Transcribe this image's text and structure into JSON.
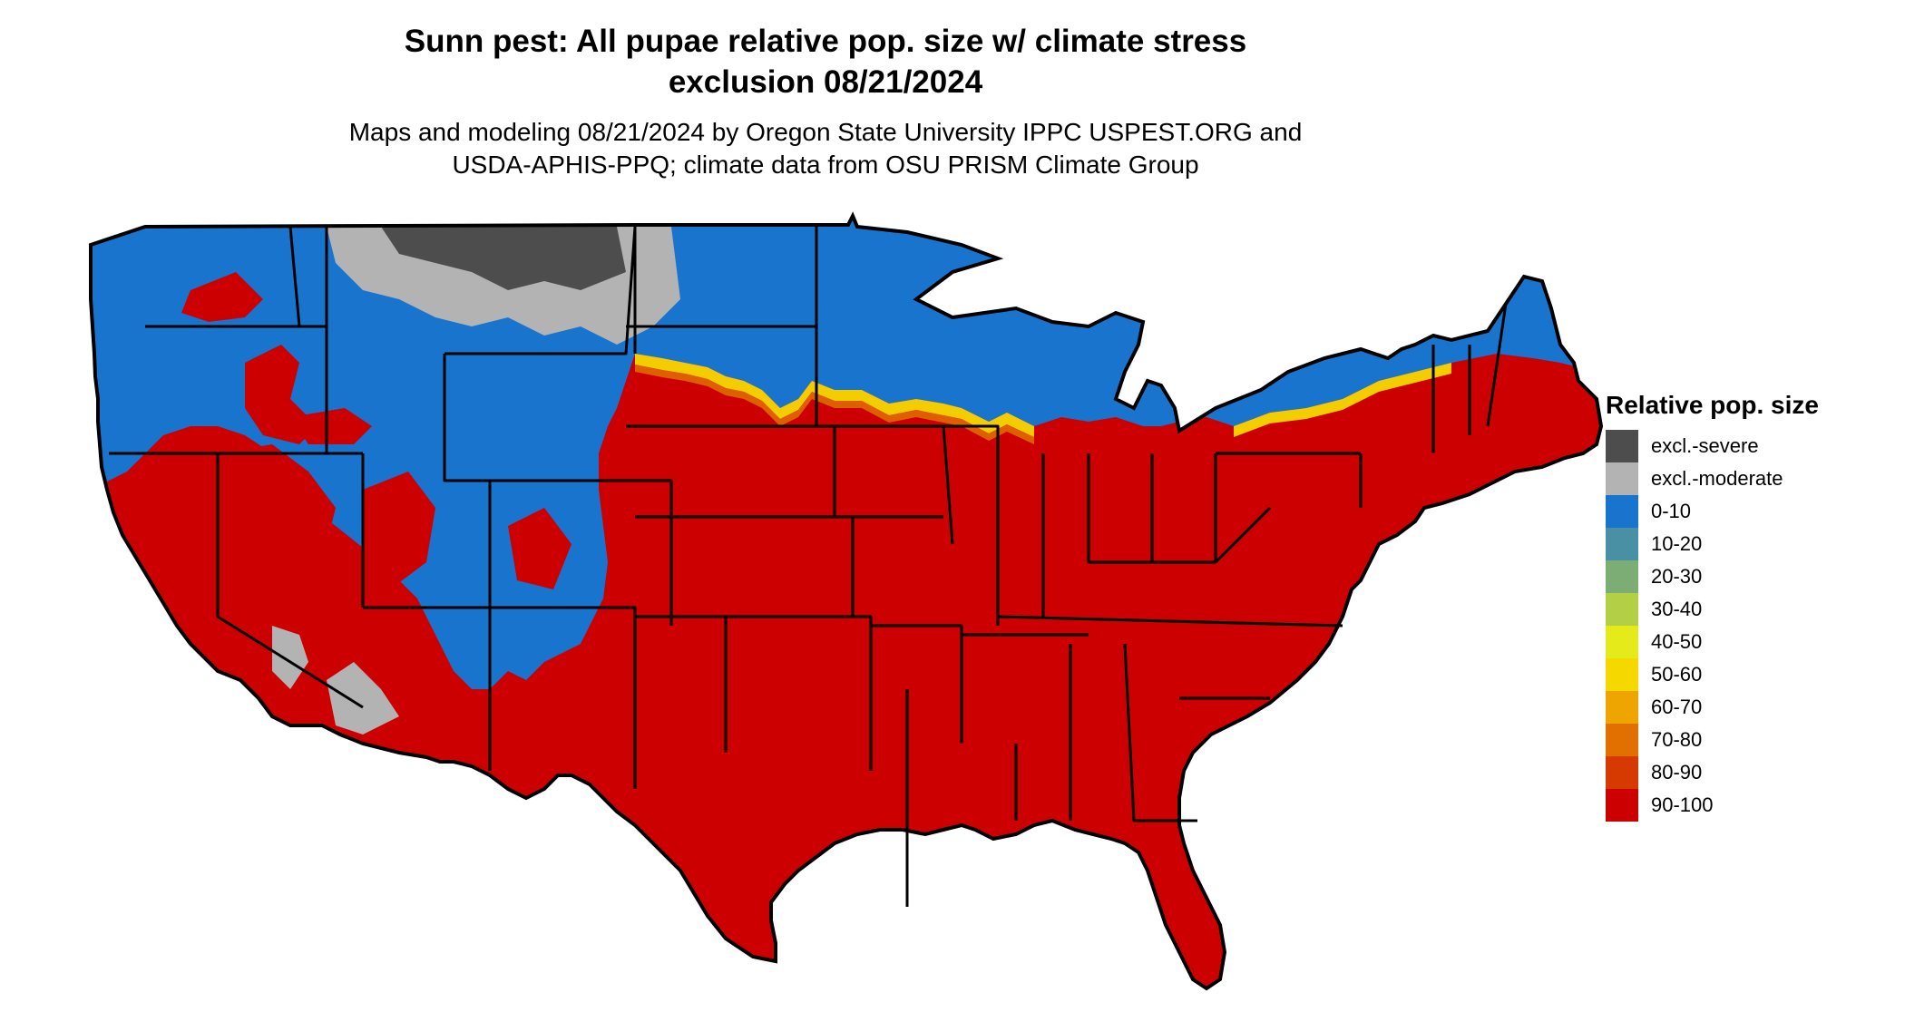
{
  "title": {
    "line1": "Sunn pest: All pupae relative pop. size w/ climate stress",
    "line2": "exclusion 08/21/2024"
  },
  "subtitle": {
    "line1": "Maps and modeling 08/21/2024 by Oregon State University IPPC USPEST.ORG and",
    "line2": "USDA-APHIS-PPQ; climate data from OSU PRISM Climate Group"
  },
  "legend": {
    "title": "Relative pop. size",
    "items": [
      {
        "label": "excl.-severe",
        "color": "#4d4d4d"
      },
      {
        "label": "excl.-moderate",
        "color": "#b3b3b3"
      },
      {
        "label": "0-10",
        "color": "#1874cd"
      },
      {
        "label": "10-20",
        "color": "#4a90a4"
      },
      {
        "label": "20-30",
        "color": "#7cad74"
      },
      {
        "label": "30-40",
        "color": "#b2cf45"
      },
      {
        "label": "40-50",
        "color": "#e5ea1a"
      },
      {
        "label": "50-60",
        "color": "#f5d800"
      },
      {
        "label": "60-70",
        "color": "#efa500"
      },
      {
        "label": "70-80",
        "color": "#e27000"
      },
      {
        "label": "80-90",
        "color": "#d63a00"
      },
      {
        "label": "90-100",
        "color": "#cc0000"
      }
    ]
  },
  "map": {
    "region": "Contiguous United States",
    "fill_colors": {
      "dominant": "#cc0000",
      "cool_zone": "#1874cd",
      "excl_moderate": "#b3b3b3",
      "excl_severe": "#4d4d4d",
      "transition": "#f5d800",
      "border": "#000000"
    }
  }
}
